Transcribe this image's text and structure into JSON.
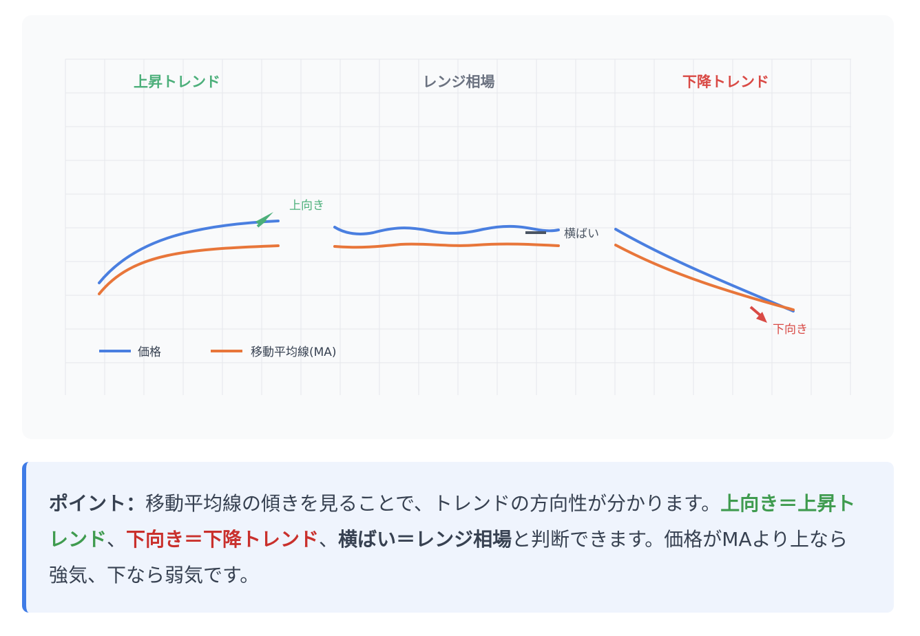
{
  "diagram": {
    "sections": [
      {
        "label": "上昇トレンド",
        "color": "#4caf7a"
      },
      {
        "label": "レンジ相場",
        "color": "#6b7280"
      },
      {
        "label": "下降トレンド",
        "color": "#d94a45"
      }
    ],
    "annotations": {
      "up": "上向き",
      "flat": "横ばい",
      "down": "下向き"
    },
    "legend": [
      {
        "label": "価格",
        "color": "#4a7fe0"
      },
      {
        "label": "移動平均線(MA)",
        "color": "#e8763a"
      }
    ],
    "colors": {
      "price": "#4a7fe0",
      "ma": "#e8763a",
      "up": "#4caf7a",
      "down": "#d94a45",
      "flat": "#4b5563",
      "grid": "#e5e7eb"
    }
  },
  "note": {
    "point_label": "ポイント：",
    "text1": "移動平均線の傾きを見ることで、トレンドの方向性が分かります。",
    "uptrend": "上向き＝上昇トレンド",
    "sep1": "、",
    "downtrend": "下向き＝下降トレンド",
    "sep2": "、",
    "range": "横ばい＝レンジ相場",
    "text2": "と判断できます。価格がMAより上なら強気、下なら弱気です。"
  }
}
